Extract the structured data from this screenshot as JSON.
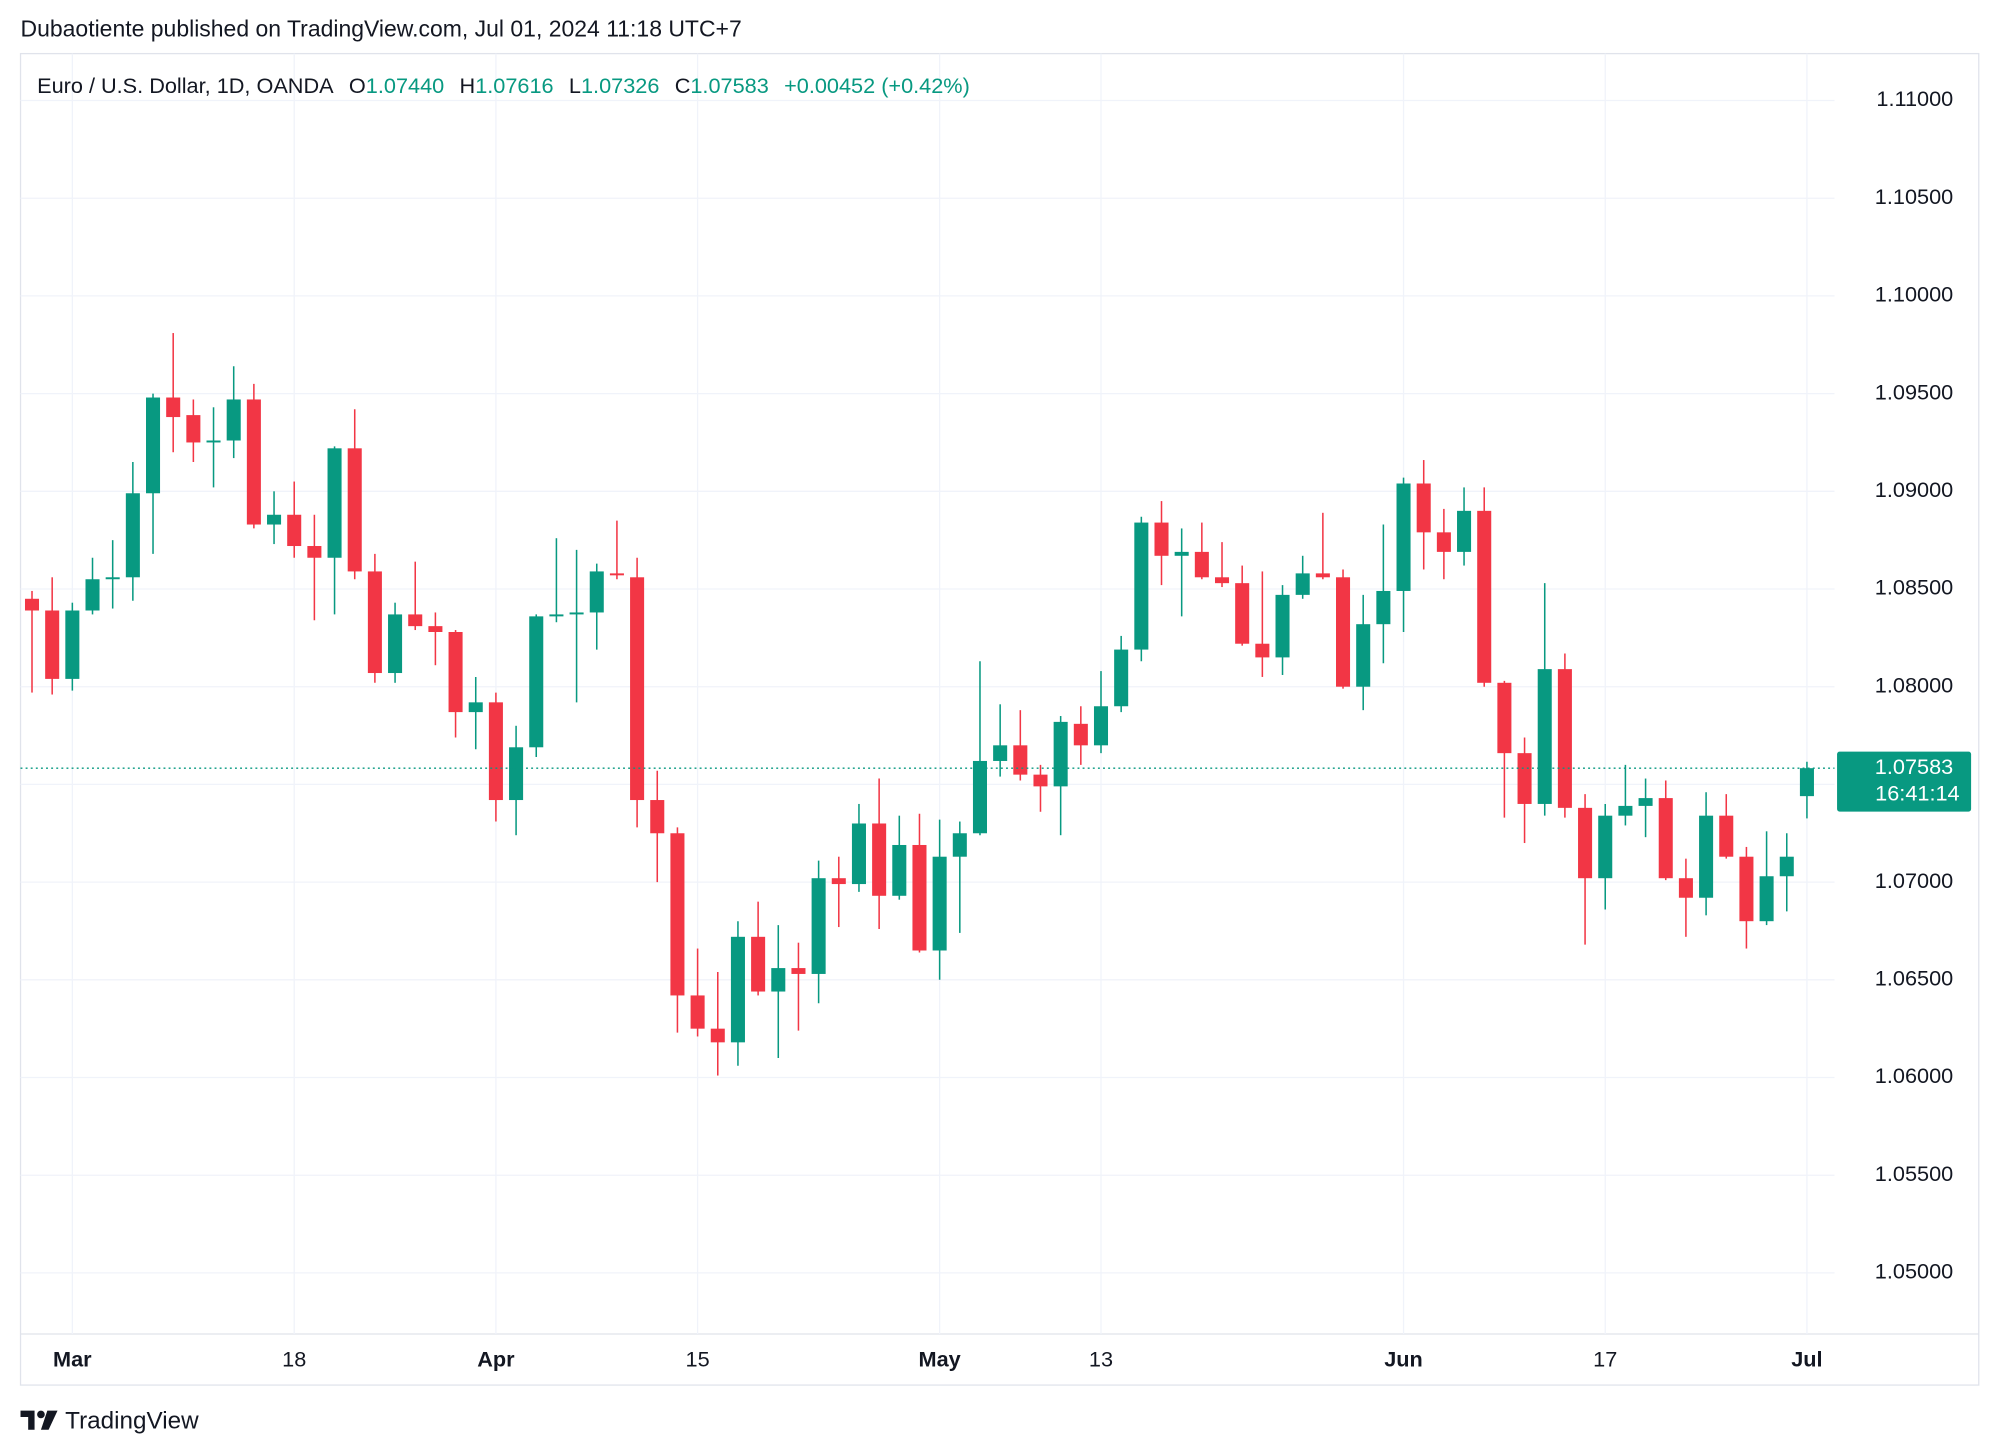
{
  "chart_data": {
    "type": "candlestick",
    "title": "Dubaotiente published on TradingView.com, Jul 01, 2024 11:18 UTC+7",
    "subtitle": "Euro / U.S. Dollar, 1D, OANDA",
    "ohlc_legend": {
      "open_label": "O",
      "open": "1.07440",
      "high_label": "H",
      "high": "1.07616",
      "low_label": "L",
      "low": "1.07326",
      "close_label": "C",
      "close": "1.07583",
      "change": "+0.00452 (+0.42%)"
    },
    "brand": "TradingView",
    "up_color": "#089981",
    "down_color": "#f23645",
    "grid": true,
    "categories": [
      null,
      null,
      "Mar",
      null,
      null,
      null,
      null,
      null,
      null,
      null,
      null,
      null,
      null,
      "18",
      null,
      null,
      null,
      null,
      null,
      null,
      null,
      null,
      null,
      "Apr",
      null,
      null,
      null,
      null,
      null,
      null,
      null,
      null,
      null,
      "15",
      null,
      null,
      null,
      null,
      null,
      null,
      null,
      null,
      null,
      null,
      null,
      "May",
      null,
      null,
      null,
      null,
      null,
      null,
      null,
      "13",
      null,
      null,
      null,
      null,
      null,
      null,
      null,
      null,
      null,
      null,
      null,
      null,
      null,
      null,
      "Jun",
      null,
      null,
      null,
      null,
      null,
      null,
      null,
      null,
      null,
      "17",
      null,
      null,
      null,
      null,
      null,
      null,
      null,
      null,
      null,
      "Jul"
    ],
    "open": [
      1.0845,
      1.0839,
      1.0804,
      1.0839,
      1.0855,
      1.0856,
      1.0899,
      1.0948,
      1.0939,
      1.0925,
      1.0926,
      1.0947,
      1.0883,
      1.0888,
      1.0872,
      1.0866,
      1.0922,
      1.0859,
      1.0807,
      1.0837,
      1.0831,
      1.0828,
      1.0787,
      1.0792,
      1.0742,
      1.0769,
      1.0836,
      1.0837,
      1.0838,
      1.0858,
      1.0856,
      1.0742,
      1.0725,
      1.0642,
      1.0625,
      1.0618,
      1.0672,
      1.0644,
      1.0656,
      1.0653,
      1.0702,
      1.0699,
      1.073,
      1.0693,
      1.0719,
      1.0665,
      1.0713,
      1.0725,
      1.0762,
      1.077,
      1.0755,
      1.0749,
      1.0781,
      1.077,
      1.079,
      1.0819,
      1.0884,
      1.0867,
      1.0869,
      1.0856,
      1.0853,
      1.0822,
      1.0815,
      1.0847,
      1.0858,
      1.0856,
      1.08,
      1.0832,
      1.0849,
      1.0904,
      1.0879,
      1.0869,
      1.089,
      1.0802,
      1.0766,
      1.074,
      1.0809,
      1.0738,
      1.0702,
      1.0734,
      1.0739,
      1.0743,
      1.0702,
      1.0692,
      1.0734,
      1.0713,
      1.068,
      1.0703,
      1.0744
    ],
    "high": [
      1.0849,
      1.0856,
      1.0843,
      1.0866,
      1.0875,
      1.0915,
      1.095,
      1.0981,
      1.0947,
      1.0943,
      1.0964,
      1.0955,
      1.09,
      1.0905,
      1.0888,
      1.0923,
      1.0942,
      1.0868,
      1.0843,
      1.0864,
      1.0838,
      1.0829,
      1.0805,
      1.0797,
      1.078,
      1.0837,
      1.0876,
      1.087,
      1.0863,
      1.0885,
      1.0866,
      1.0757,
      1.0728,
      1.0666,
      1.0654,
      1.068,
      1.069,
      1.0678,
      1.0669,
      1.0711,
      1.0713,
      1.074,
      1.0753,
      1.0734,
      1.0735,
      1.0732,
      1.0731,
      1.0813,
      1.0791,
      1.0788,
      1.076,
      1.0785,
      1.079,
      1.0808,
      1.0826,
      1.0887,
      1.0895,
      1.0881,
      1.0884,
      1.0874,
      1.0862,
      1.0859,
      1.0852,
      1.0867,
      1.0889,
      1.086,
      1.0847,
      1.0883,
      1.0907,
      1.0916,
      1.0891,
      1.0902,
      1.0902,
      1.0803,
      1.0774,
      1.0853,
      1.0817,
      1.0745,
      1.074,
      1.076,
      1.0753,
      1.0752,
      1.0712,
      1.0746,
      1.0745,
      1.0718,
      1.0726,
      1.0725,
      1.07616
    ],
    "low": [
      1.0797,
      1.0796,
      1.0798,
      1.0837,
      1.084,
      1.0844,
      1.0868,
      1.092,
      1.0915,
      1.0902,
      1.0917,
      1.0881,
      1.0873,
      1.0866,
      1.0834,
      1.0837,
      1.0855,
      1.0802,
      1.0802,
      1.0829,
      1.0811,
      1.0774,
      1.0768,
      1.0731,
      1.0724,
      1.0764,
      1.0833,
      1.0792,
      1.0819,
      1.0855,
      1.0728,
      1.07,
      1.0623,
      1.0621,
      1.0601,
      1.0606,
      1.0642,
      1.061,
      1.0624,
      1.0638,
      1.0677,
      1.0695,
      1.0676,
      1.0691,
      1.0664,
      1.065,
      1.0674,
      1.0724,
      1.0754,
      1.0752,
      1.0736,
      1.0724,
      1.076,
      1.0766,
      1.0787,
      1.0813,
      1.0852,
      1.0836,
      1.0855,
      1.0851,
      1.0821,
      1.0805,
      1.0806,
      1.0845,
      1.0855,
      1.0799,
      1.0788,
      1.0812,
      1.0828,
      1.086,
      1.0855,
      1.0862,
      1.08,
      1.0733,
      1.072,
      1.0734,
      1.0733,
      1.0668,
      1.0686,
      1.0729,
      1.0723,
      1.0701,
      1.0672,
      1.0683,
      1.0712,
      1.0666,
      1.0678,
      1.0685,
      1.07326
    ],
    "close": [
      1.0839,
      1.0804,
      1.0839,
      1.0855,
      1.0856,
      1.0899,
      1.0948,
      1.0938,
      1.0925,
      1.0926,
      1.0947,
      1.0883,
      1.0888,
      1.0872,
      1.0866,
      1.0922,
      1.0859,
      1.0807,
      1.0837,
      1.0831,
      1.0828,
      1.0787,
      1.0792,
      1.0742,
      1.0769,
      1.0836,
      1.0837,
      1.0838,
      1.0859,
      1.0857,
      1.0742,
      1.0725,
      1.0642,
      1.0625,
      1.0618,
      1.0672,
      1.0644,
      1.0656,
      1.0653,
      1.0702,
      1.0699,
      1.073,
      1.0693,
      1.0719,
      1.0665,
      1.0713,
      1.0725,
      1.0762,
      1.077,
      1.0755,
      1.0749,
      1.0782,
      1.077,
      1.079,
      1.0819,
      1.0884,
      1.0867,
      1.0869,
      1.0856,
      1.0853,
      1.0822,
      1.0815,
      1.0847,
      1.0858,
      1.0856,
      1.08,
      1.0832,
      1.0849,
      1.0904,
      1.0879,
      1.0869,
      1.089,
      1.0802,
      1.0766,
      1.074,
      1.0809,
      1.0738,
      1.0702,
      1.0734,
      1.0739,
      1.0743,
      1.0702,
      1.0692,
      1.0734,
      1.0713,
      1.068,
      1.0703,
      1.0713,
      1.07583
    ],
    "ylim": [
      1.0472,
      1.1124
    ],
    "yticks": [
      {
        "value": 1.05,
        "label": "1.05000"
      },
      {
        "value": 1.055,
        "label": "1.05500"
      },
      {
        "value": 1.06,
        "label": "1.06000"
      },
      {
        "value": 1.065,
        "label": "1.06500"
      },
      {
        "value": 1.07,
        "label": "1.07000"
      },
      {
        "value": 1.075,
        "label": "1.07500"
      },
      {
        "value": 1.08,
        "label": "1.08000"
      },
      {
        "value": 1.085,
        "label": "1.08500"
      },
      {
        "value": 1.09,
        "label": "1.09000"
      },
      {
        "value": 1.095,
        "label": "1.09500"
      },
      {
        "value": 1.1,
        "label": "1.10000"
      },
      {
        "value": 1.105,
        "label": "1.10500"
      },
      {
        "value": 1.11,
        "label": "1.11000"
      }
    ],
    "last_price": {
      "value": 1.07583,
      "label": "1.07583"
    },
    "countdown": "16:41:14"
  }
}
